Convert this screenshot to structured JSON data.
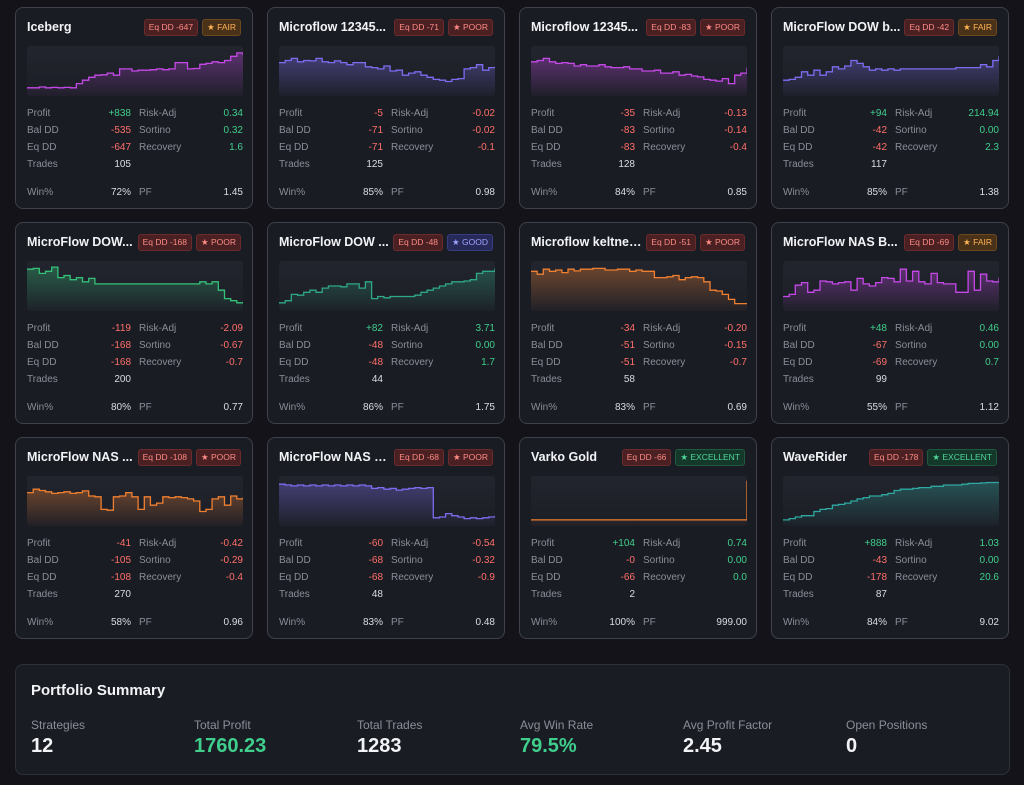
{
  "cards": [
    {
      "name": "Iceberg",
      "dd": "Eq DD -647",
      "rating": "★ FAIR",
      "rating_class": "fair",
      "color": "#c548e8",
      "stats": {
        "profit": "+838",
        "profit_c": "pos",
        "radj": "0.34",
        "radj_c": "pos",
        "baldd": "-535",
        "sortino": "0.32",
        "sortino_c": "pos",
        "eqdd": "-647",
        "recovery": "1.6",
        "recovery_c": "pos",
        "trades": "105",
        "win": "72%",
        "pf": "1.45"
      },
      "curve": [
        0.1,
        0.1,
        0.12,
        0.1,
        0.11,
        0.1,
        0.11,
        0.1,
        0.2,
        0.28,
        0.35,
        0.4,
        0.41,
        0.45,
        0.4,
        0.55,
        0.55,
        0.5,
        0.52,
        0.52,
        0.53,
        0.55,
        0.53,
        0.55,
        0.7,
        0.7,
        0.55,
        0.56,
        0.66,
        0.68,
        0.72,
        0.7,
        0.75,
        0.85,
        0.93,
        0.88
      ]
    },
    {
      "name": "Microflow 12345...",
      "dd": "Eq DD -71",
      "rating": "★ POOR",
      "rating_class": "poor",
      "color": "#7c6cf0",
      "stats": {
        "profit": "-5",
        "profit_c": "neg",
        "radj": "-0.02",
        "radj_c": "neg",
        "baldd": "-71",
        "sortino": "-0.02",
        "sortino_c": "neg",
        "eqdd": "-71",
        "recovery": "-0.1",
        "recovery_c": "neg",
        "trades": "125",
        "win": "85%",
        "pf": "0.98"
      },
      "curve": [
        0.7,
        0.75,
        0.8,
        0.72,
        0.75,
        0.74,
        0.8,
        0.72,
        0.7,
        0.74,
        0.7,
        0.65,
        0.7,
        0.7,
        0.6,
        0.58,
        0.55,
        0.62,
        0.5,
        0.52,
        0.4,
        0.45,
        0.48,
        0.4,
        0.35,
        0.3,
        0.28,
        0.25,
        0.3,
        0.32,
        0.55,
        0.58,
        0.65,
        0.52,
        0.58,
        0.6
      ]
    },
    {
      "name": "Microflow 12345...",
      "dd": "Eq DD -83",
      "rating": "★ POOR",
      "rating_class": "poor",
      "color": "#c548e8",
      "stats": {
        "profit": "-35",
        "profit_c": "neg",
        "radj": "-0.13",
        "radj_c": "neg",
        "baldd": "-83",
        "sortino": "-0.14",
        "sortino_c": "neg",
        "eqdd": "-83",
        "recovery": "-0.4",
        "recovery_c": "neg",
        "trades": "128",
        "win": "84%",
        "pf": "0.85"
      },
      "curve": [
        0.72,
        0.75,
        0.8,
        0.72,
        0.68,
        0.7,
        0.68,
        0.62,
        0.65,
        0.62,
        0.62,
        0.65,
        0.6,
        0.58,
        0.58,
        0.6,
        0.55,
        0.55,
        0.5,
        0.5,
        0.52,
        0.45,
        0.45,
        0.48,
        0.4,
        0.42,
        0.38,
        0.36,
        0.3,
        0.28,
        0.26,
        0.32,
        0.2,
        0.4,
        0.45,
        0.58
      ]
    },
    {
      "name": "MicroFlow DOW b...",
      "dd": "Eq DD -42",
      "rating": "★ FAIR",
      "rating_class": "fair",
      "color": "#7c6cf0",
      "stats": {
        "profit": "+94",
        "profit_c": "pos",
        "radj": "214.94",
        "radj_c": "pos",
        "baldd": "-42",
        "sortino": "0.00",
        "sortino_c": "pos",
        "eqdd": "-42",
        "recovery": "2.3",
        "recovery_c": "pos",
        "trades": "117",
        "win": "85%",
        "pf": "1.38"
      },
      "curve": [
        0.28,
        0.3,
        0.35,
        0.48,
        0.4,
        0.52,
        0.4,
        0.48,
        0.6,
        0.55,
        0.62,
        0.75,
        0.68,
        0.6,
        0.52,
        0.55,
        0.52,
        0.55,
        0.52,
        0.55,
        0.55,
        0.55,
        0.55,
        0.55,
        0.55,
        0.55,
        0.55,
        0.55,
        0.58,
        0.58,
        0.58,
        0.58,
        0.65,
        0.6,
        0.75,
        0.85
      ]
    },
    {
      "name": "MicroFlow DOW...",
      "dd": "Eq DD -168",
      "rating": "★ POOR",
      "rating_class": "poor",
      "color": "#34c27a",
      "stats": {
        "profit": "-119",
        "profit_c": "neg",
        "radj": "-2.09",
        "radj_c": "neg",
        "baldd": "-168",
        "sortino": "-0.67",
        "sortino_c": "neg",
        "eqdd": "-168",
        "recovery": "-0.7",
        "recovery_c": "neg",
        "trades": "200",
        "win": "80%",
        "pf": "0.77"
      },
      "curve": [
        0.9,
        0.92,
        0.8,
        0.85,
        0.95,
        0.7,
        0.75,
        0.65,
        0.7,
        0.6,
        0.68,
        0.55,
        0.55,
        0.55,
        0.55,
        0.55,
        0.55,
        0.55,
        0.55,
        0.55,
        0.55,
        0.55,
        0.55,
        0.55,
        0.55,
        0.55,
        0.55,
        0.55,
        0.6,
        0.55,
        0.6,
        0.4,
        0.2,
        0.15,
        0.1,
        0.12
      ]
    },
    {
      "name": "MicroFlow DOW ...",
      "dd": "Eq DD -48",
      "rating": "★ GOOD",
      "rating_class": "good",
      "color": "#2ea886",
      "stats": {
        "profit": "+82",
        "profit_c": "pos",
        "radj": "3.71",
        "radj_c": "pos",
        "baldd": "-48",
        "sortino": "0.00",
        "sortino_c": "pos",
        "eqdd": "-48",
        "recovery": "1.7",
        "recovery_c": "pos",
        "trades": "44",
        "win": "86%",
        "pf": "1.75"
      },
      "curve": [
        0.1,
        0.15,
        0.3,
        0.28,
        0.35,
        0.4,
        0.35,
        0.45,
        0.5,
        0.5,
        0.48,
        0.55,
        0.55,
        0.45,
        0.6,
        0.2,
        0.25,
        0.22,
        0.25,
        0.25,
        0.25,
        0.25,
        0.28,
        0.35,
        0.4,
        0.45,
        0.5,
        0.55,
        0.6,
        0.6,
        0.62,
        0.65,
        0.8,
        0.85,
        0.85,
        0.92
      ]
    },
    {
      "name": "Microflow keltner...",
      "dd": "Eq DD -51",
      "rating": "★ POOR",
      "rating_class": "poor",
      "color": "#f08030",
      "stats": {
        "profit": "-34",
        "profit_c": "neg",
        "radj": "-0.20",
        "radj_c": "neg",
        "baldd": "-51",
        "sortino": "-0.15",
        "sortino_c": "neg",
        "eqdd": "-51",
        "recovery": "-0.7",
        "recovery_c": "neg",
        "trades": "58",
        "win": "83%",
        "pf": "0.69"
      },
      "curve": [
        0.85,
        0.78,
        0.9,
        0.85,
        0.88,
        0.82,
        0.9,
        0.86,
        0.9,
        0.9,
        0.92,
        0.92,
        0.88,
        0.88,
        0.9,
        0.9,
        0.85,
        0.88,
        0.85,
        0.85,
        0.7,
        0.7,
        0.72,
        0.75,
        0.65,
        0.7,
        0.72,
        0.7,
        0.6,
        0.4,
        0.38,
        0.3,
        0.18,
        0.08,
        0.08,
        0.08
      ]
    },
    {
      "name": "MicroFlow NAS B...",
      "dd": "Eq DD -69",
      "rating": "★ FAIR",
      "rating_class": "fair",
      "color": "#c548e8",
      "stats": {
        "profit": "+48",
        "profit_c": "pos",
        "radj": "0.46",
        "radj_c": "pos",
        "baldd": "-67",
        "sortino": "0.00",
        "sortino_c": "pos",
        "eqdd": "-69",
        "recovery": "0.7",
        "recovery_c": "pos",
        "trades": "99",
        "win": "55%",
        "pf": "1.12"
      },
      "curve": [
        0.25,
        0.3,
        0.52,
        0.58,
        0.35,
        0.4,
        0.62,
        0.6,
        0.55,
        0.58,
        0.6,
        0.4,
        0.68,
        0.55,
        0.5,
        0.58,
        0.7,
        0.68,
        0.6,
        0.9,
        0.62,
        0.85,
        0.6,
        0.55,
        0.8,
        0.58,
        0.55,
        0.55,
        0.35,
        0.35,
        0.85,
        0.4,
        0.78,
        0.62,
        0.6,
        0.7
      ]
    },
    {
      "name": "MicroFlow NAS ...",
      "dd": "Eq DD -108",
      "rating": "★ POOR",
      "rating_class": "poor",
      "color": "#f08030",
      "stats": {
        "profit": "-41",
        "profit_c": "neg",
        "radj": "-0.42",
        "radj_c": "neg",
        "baldd": "-105",
        "sortino": "-0.29",
        "sortino_c": "neg",
        "eqdd": "-108",
        "recovery": "-0.4",
        "recovery_c": "neg",
        "trades": "270",
        "win": "58%",
        "pf": "0.96"
      },
      "curve": [
        0.7,
        0.78,
        0.75,
        0.72,
        0.68,
        0.7,
        0.72,
        0.68,
        0.7,
        0.74,
        0.62,
        0.6,
        0.3,
        0.28,
        0.6,
        0.62,
        0.7,
        0.6,
        0.3,
        0.6,
        0.4,
        0.45,
        0.6,
        0.58,
        0.6,
        0.58,
        0.55,
        0.5,
        0.25,
        0.3,
        0.55,
        0.6,
        0.4,
        0.62,
        0.55,
        0.58
      ]
    },
    {
      "name": "MicroFlow NAS S...",
      "dd": "Eq DD -68",
      "rating": "★ POOR",
      "rating_class": "poor",
      "color": "#7c6cf0",
      "stats": {
        "profit": "-60",
        "profit_c": "neg",
        "radj": "-0.54",
        "radj_c": "neg",
        "baldd": "-68",
        "sortino": "-0.32",
        "sortino_c": "neg",
        "eqdd": "-68",
        "recovery": "-0.9",
        "recovery_c": "neg",
        "trades": "48",
        "win": "83%",
        "pf": "0.48"
      },
      "curve": [
        0.9,
        0.88,
        0.86,
        0.88,
        0.86,
        0.88,
        0.86,
        0.88,
        0.86,
        0.88,
        0.86,
        0.88,
        0.86,
        0.88,
        0.86,
        0.8,
        0.82,
        0.78,
        0.8,
        0.76,
        0.78,
        0.8,
        0.82,
        0.8,
        0.82,
        0.1,
        0.12,
        0.2,
        0.15,
        0.12,
        0.08,
        0.1,
        0.08,
        0.1,
        0.12,
        0.15
      ]
    },
    {
      "name": "Varko Gold",
      "dd": "Eq DD -66",
      "rating": "★ EXCELLENT",
      "rating_class": "excellent",
      "color": "#f08030",
      "stats": {
        "profit": "+104",
        "profit_c": "pos",
        "radj": "0.74",
        "radj_c": "pos",
        "baldd": "-0",
        "sortino": "0.00",
        "sortino_c": "pos",
        "eqdd": "-66",
        "recovery": "0.0",
        "recovery_c": "pos",
        "trades": "2",
        "win": "100%",
        "pf": "999.00"
      },
      "curve": [
        0.05,
        0.05,
        0.05,
        0.05,
        0.05,
        0.05,
        0.05,
        0.05,
        0.05,
        0.05,
        0.05,
        0.05,
        0.05,
        0.05,
        0.05,
        0.05,
        0.05,
        0.05,
        0.05,
        0.05,
        0.05,
        0.05,
        0.05,
        0.05,
        0.05,
        0.05,
        0.05,
        0.05,
        0.05,
        0.05,
        0.05,
        0.05,
        0.05,
        0.05,
        0.05,
        0.98
      ]
    },
    {
      "name": "WaveRider",
      "dd": "Eq DD -178",
      "rating": "★ EXCELLENT",
      "rating_class": "excellent",
      "color": "#2ea8a0",
      "stats": {
        "profit": "+888",
        "profit_c": "pos",
        "radj": "1.03",
        "radj_c": "pos",
        "baldd": "-43",
        "sortino": "0.00",
        "sortino_c": "pos",
        "eqdd": "-178",
        "recovery": "20.6",
        "recovery_c": "pos",
        "trades": "87",
        "win": "84%",
        "pf": "9.02"
      },
      "curve": [
        0.05,
        0.08,
        0.12,
        0.15,
        0.15,
        0.25,
        0.3,
        0.32,
        0.4,
        0.42,
        0.45,
        0.5,
        0.55,
        0.58,
        0.62,
        0.62,
        0.65,
        0.68,
        0.75,
        0.78,
        0.78,
        0.8,
        0.82,
        0.82,
        0.85,
        0.85,
        0.88,
        0.88,
        0.88,
        0.9,
        0.92,
        0.92,
        0.93,
        0.94,
        0.94,
        0.95
      ]
    }
  ],
  "labels": {
    "profit": "Profit",
    "radj": "Risk-Adj",
    "baldd": "Bal DD",
    "sortino": "Sortino",
    "eqdd": "Eq DD",
    "recovery": "Recovery",
    "trades": "Trades",
    "win": "Win%",
    "pf": "PF"
  },
  "summary": {
    "title": "Portfolio Summary",
    "items": [
      {
        "label": "Strategies",
        "value": "12",
        "cls": ""
      },
      {
        "label": "Total Profit",
        "value": "1760.23",
        "cls": "pos"
      },
      {
        "label": "Total Trades",
        "value": "1283",
        "cls": ""
      },
      {
        "label": "Avg Win Rate",
        "value": "79.5%",
        "cls": "pos"
      },
      {
        "label": "Avg Profit Factor",
        "value": "2.45",
        "cls": ""
      },
      {
        "label": "Open Positions",
        "value": "0",
        "cls": ""
      }
    ]
  }
}
